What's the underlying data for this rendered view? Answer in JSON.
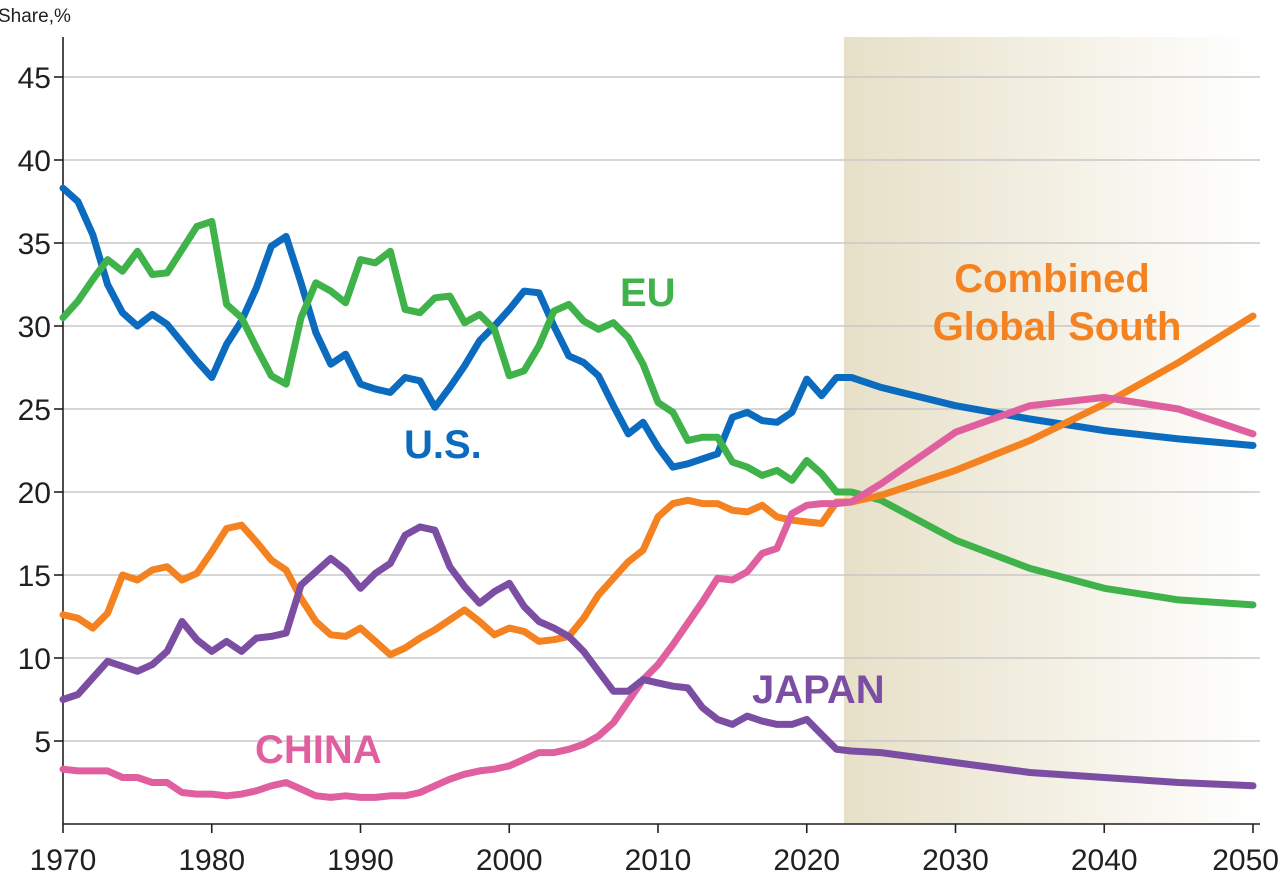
{
  "chart_data": {
    "type": "line",
    "title": "",
    "ylabel": "Share,%",
    "xlabel": "",
    "xlim": [
      1970,
      2050
    ],
    "ylim": [
      0,
      47
    ],
    "grid": true,
    "x_ticks": [
      "1970",
      "1980",
      "1990",
      "2000",
      "2010",
      "2020",
      "2030",
      "2040",
      "2050"
    ],
    "y_ticks": [
      "5",
      "10",
      "15",
      "20",
      "25",
      "30",
      "35",
      "40",
      "45"
    ],
    "projection_start": 2022.5,
    "series": [
      {
        "name": "U.S.",
        "label": "U.S.",
        "color": "#0a6bbf",
        "points": [
          [
            1970,
            38.3
          ],
          [
            1971,
            37.5
          ],
          [
            1972,
            35.5
          ],
          [
            1973,
            32.5
          ],
          [
            1974,
            30.8
          ],
          [
            1975,
            30.0
          ],
          [
            1976,
            30.7
          ],
          [
            1977,
            30.1
          ],
          [
            1978,
            29.0
          ],
          [
            1979,
            27.9
          ],
          [
            1980,
            26.9
          ],
          [
            1981,
            28.9
          ],
          [
            1982,
            30.3
          ],
          [
            1983,
            32.3
          ],
          [
            1984,
            34.8
          ],
          [
            1985,
            35.4
          ],
          [
            1986,
            32.6
          ],
          [
            1987,
            29.6
          ],
          [
            1988,
            27.7
          ],
          [
            1989,
            28.3
          ],
          [
            1990,
            26.5
          ],
          [
            1991,
            26.2
          ],
          [
            1992,
            26.0
          ],
          [
            1993,
            26.9
          ],
          [
            1994,
            26.7
          ],
          [
            1995,
            25.1
          ],
          [
            1996,
            26.3
          ],
          [
            1997,
            27.6
          ],
          [
            1998,
            29.1
          ],
          [
            1999,
            30.0
          ],
          [
            2000,
            31.0
          ],
          [
            2001,
            32.1
          ],
          [
            2002,
            32.0
          ],
          [
            2003,
            30.0
          ],
          [
            2004,
            28.2
          ],
          [
            2005,
            27.8
          ],
          [
            2006,
            27.0
          ],
          [
            2007,
            25.2
          ],
          [
            2008,
            23.5
          ],
          [
            2009,
            24.2
          ],
          [
            2010,
            22.7
          ],
          [
            2011,
            21.5
          ],
          [
            2012,
            21.7
          ],
          [
            2013,
            22.0
          ],
          [
            2014,
            22.3
          ],
          [
            2015,
            24.5
          ],
          [
            2016,
            24.8
          ],
          [
            2017,
            24.3
          ],
          [
            2018,
            24.2
          ],
          [
            2019,
            24.8
          ],
          [
            2020,
            26.8
          ],
          [
            2021,
            25.8
          ],
          [
            2022,
            26.9
          ],
          [
            2023,
            26.9
          ],
          [
            2025,
            26.3
          ],
          [
            2030,
            25.2
          ],
          [
            2035,
            24.4
          ],
          [
            2040,
            23.7
          ],
          [
            2045,
            23.2
          ],
          [
            2050,
            22.8
          ]
        ]
      },
      {
        "name": "EU",
        "label": "EU",
        "color": "#3fb24a",
        "points": [
          [
            1970,
            30.5
          ],
          [
            1971,
            31.5
          ],
          [
            1972,
            32.8
          ],
          [
            1973,
            34.0
          ],
          [
            1974,
            33.3
          ],
          [
            1975,
            34.5
          ],
          [
            1976,
            33.1
          ],
          [
            1977,
            33.2
          ],
          [
            1978,
            34.6
          ],
          [
            1979,
            36.0
          ],
          [
            1980,
            36.3
          ],
          [
            1981,
            31.3
          ],
          [
            1982,
            30.5
          ],
          [
            1983,
            28.7
          ],
          [
            1984,
            27.0
          ],
          [
            1985,
            26.5
          ],
          [
            1986,
            30.5
          ],
          [
            1987,
            32.6
          ],
          [
            1988,
            32.1
          ],
          [
            1989,
            31.4
          ],
          [
            1990,
            34.0
          ],
          [
            1991,
            33.8
          ],
          [
            1992,
            34.5
          ],
          [
            1993,
            31.0
          ],
          [
            1994,
            30.8
          ],
          [
            1995,
            31.7
          ],
          [
            1996,
            31.8
          ],
          [
            1997,
            30.2
          ],
          [
            1998,
            30.7
          ],
          [
            1999,
            29.8
          ],
          [
            2000,
            27.0
          ],
          [
            2001,
            27.3
          ],
          [
            2002,
            28.8
          ],
          [
            2003,
            30.9
          ],
          [
            2004,
            31.3
          ],
          [
            2005,
            30.3
          ],
          [
            2006,
            29.8
          ],
          [
            2007,
            30.2
          ],
          [
            2008,
            29.3
          ],
          [
            2009,
            27.7
          ],
          [
            2010,
            25.4
          ],
          [
            2011,
            24.8
          ],
          [
            2012,
            23.1
          ],
          [
            2013,
            23.3
          ],
          [
            2014,
            23.3
          ],
          [
            2015,
            21.8
          ],
          [
            2016,
            21.5
          ],
          [
            2017,
            21.0
          ],
          [
            2018,
            21.3
          ],
          [
            2019,
            20.7
          ],
          [
            2020,
            21.9
          ],
          [
            2021,
            21.1
          ],
          [
            2022,
            20.0
          ],
          [
            2023,
            20.0
          ],
          [
            2025,
            19.5
          ],
          [
            2030,
            17.1
          ],
          [
            2035,
            15.4
          ],
          [
            2040,
            14.2
          ],
          [
            2045,
            13.5
          ],
          [
            2050,
            13.2
          ]
        ]
      },
      {
        "name": "Combined Global South",
        "label": "Combined Global South",
        "color": "#f58220",
        "points": [
          [
            1970,
            12.6
          ],
          [
            1971,
            12.4
          ],
          [
            1972,
            11.8
          ],
          [
            1973,
            12.7
          ],
          [
            1974,
            15.0
          ],
          [
            1975,
            14.7
          ],
          [
            1976,
            15.3
          ],
          [
            1977,
            15.5
          ],
          [
            1978,
            14.7
          ],
          [
            1979,
            15.1
          ],
          [
            1980,
            16.4
          ],
          [
            1981,
            17.8
          ],
          [
            1982,
            18.0
          ],
          [
            1983,
            17.0
          ],
          [
            1984,
            15.9
          ],
          [
            1985,
            15.3
          ],
          [
            1986,
            13.6
          ],
          [
            1987,
            12.2
          ],
          [
            1988,
            11.4
          ],
          [
            1989,
            11.3
          ],
          [
            1990,
            11.8
          ],
          [
            1991,
            11.0
          ],
          [
            1992,
            10.2
          ],
          [
            1993,
            10.6
          ],
          [
            1994,
            11.2
          ],
          [
            1995,
            11.7
          ],
          [
            1996,
            12.3
          ],
          [
            1997,
            12.9
          ],
          [
            1998,
            12.2
          ],
          [
            1999,
            11.4
          ],
          [
            2000,
            11.8
          ],
          [
            2001,
            11.6
          ],
          [
            2002,
            11.0
          ],
          [
            2003,
            11.1
          ],
          [
            2004,
            11.3
          ],
          [
            2005,
            12.4
          ],
          [
            2006,
            13.8
          ],
          [
            2007,
            14.8
          ],
          [
            2008,
            15.8
          ],
          [
            2009,
            16.5
          ],
          [
            2010,
            18.5
          ],
          [
            2011,
            19.3
          ],
          [
            2012,
            19.5
          ],
          [
            2013,
            19.3
          ],
          [
            2014,
            19.3
          ],
          [
            2015,
            18.9
          ],
          [
            2016,
            18.8
          ],
          [
            2017,
            19.2
          ],
          [
            2018,
            18.5
          ],
          [
            2019,
            18.3
          ],
          [
            2020,
            18.2
          ],
          [
            2021,
            18.1
          ],
          [
            2022,
            19.4
          ],
          [
            2023,
            19.4
          ],
          [
            2025,
            19.8
          ],
          [
            2030,
            21.3
          ],
          [
            2035,
            23.1
          ],
          [
            2040,
            25.3
          ],
          [
            2045,
            27.8
          ],
          [
            2050,
            30.6
          ]
        ]
      },
      {
        "name": "China",
        "label": "CHINA",
        "color": "#e0609f",
        "points": [
          [
            1970,
            3.3
          ],
          [
            1971,
            3.2
          ],
          [
            1972,
            3.2
          ],
          [
            1973,
            3.2
          ],
          [
            1974,
            2.8
          ],
          [
            1975,
            2.8
          ],
          [
            1976,
            2.5
          ],
          [
            1977,
            2.5
          ],
          [
            1978,
            1.9
          ],
          [
            1979,
            1.8
          ],
          [
            1980,
            1.8
          ],
          [
            1981,
            1.7
          ],
          [
            1982,
            1.8
          ],
          [
            1983,
            2.0
          ],
          [
            1984,
            2.3
          ],
          [
            1985,
            2.5
          ],
          [
            1986,
            2.1
          ],
          [
            1987,
            1.7
          ],
          [
            1988,
            1.6
          ],
          [
            1989,
            1.7
          ],
          [
            1990,
            1.6
          ],
          [
            1991,
            1.6
          ],
          [
            1992,
            1.7
          ],
          [
            1993,
            1.7
          ],
          [
            1994,
            1.9
          ],
          [
            1995,
            2.3
          ],
          [
            1996,
            2.7
          ],
          [
            1997,
            3.0
          ],
          [
            1998,
            3.2
          ],
          [
            1999,
            3.3
          ],
          [
            2000,
            3.5
          ],
          [
            2001,
            3.9
          ],
          [
            2002,
            4.3
          ],
          [
            2003,
            4.3
          ],
          [
            2004,
            4.5
          ],
          [
            2005,
            4.8
          ],
          [
            2006,
            5.3
          ],
          [
            2007,
            6.1
          ],
          [
            2008,
            7.4
          ],
          [
            2009,
            8.7
          ],
          [
            2010,
            9.6
          ],
          [
            2011,
            10.8
          ],
          [
            2012,
            12.1
          ],
          [
            2013,
            13.4
          ],
          [
            2014,
            14.8
          ],
          [
            2015,
            14.7
          ],
          [
            2016,
            15.2
          ],
          [
            2017,
            16.3
          ],
          [
            2018,
            16.6
          ],
          [
            2019,
            18.7
          ],
          [
            2020,
            19.2
          ],
          [
            2021,
            19.3
          ],
          [
            2022,
            19.3
          ],
          [
            2023,
            19.4
          ],
          [
            2025,
            20.5
          ],
          [
            2030,
            23.6
          ],
          [
            2035,
            25.2
          ],
          [
            2040,
            25.7
          ],
          [
            2045,
            25.0
          ],
          [
            2050,
            23.5
          ]
        ]
      },
      {
        "name": "Japan",
        "label": "JAPAN",
        "color": "#7b4ea3",
        "points": [
          [
            1970,
            7.5
          ],
          [
            1971,
            7.8
          ],
          [
            1972,
            8.8
          ],
          [
            1973,
            9.8
          ],
          [
            1974,
            9.5
          ],
          [
            1975,
            9.2
          ],
          [
            1976,
            9.6
          ],
          [
            1977,
            10.4
          ],
          [
            1978,
            12.2
          ],
          [
            1979,
            11.1
          ],
          [
            1980,
            10.4
          ],
          [
            1981,
            11.0
          ],
          [
            1982,
            10.4
          ],
          [
            1983,
            11.2
          ],
          [
            1984,
            11.3
          ],
          [
            1985,
            11.5
          ],
          [
            1986,
            14.4
          ],
          [
            1987,
            15.2
          ],
          [
            1988,
            16.0
          ],
          [
            1989,
            15.3
          ],
          [
            1990,
            14.2
          ],
          [
            1991,
            15.1
          ],
          [
            1992,
            15.7
          ],
          [
            1993,
            17.4
          ],
          [
            1994,
            17.9
          ],
          [
            1995,
            17.7
          ],
          [
            1996,
            15.5
          ],
          [
            1997,
            14.3
          ],
          [
            1998,
            13.3
          ],
          [
            1999,
            14.0
          ],
          [
            2000,
            14.5
          ],
          [
            2001,
            13.1
          ],
          [
            2002,
            12.2
          ],
          [
            2003,
            11.8
          ],
          [
            2004,
            11.3
          ],
          [
            2005,
            10.4
          ],
          [
            2006,
            9.2
          ],
          [
            2007,
            8.0
          ],
          [
            2008,
            8.0
          ],
          [
            2009,
            8.7
          ],
          [
            2010,
            8.5
          ],
          [
            2011,
            8.3
          ],
          [
            2012,
            8.2
          ],
          [
            2013,
            7.0
          ],
          [
            2014,
            6.3
          ],
          [
            2015,
            6.0
          ],
          [
            2016,
            6.5
          ],
          [
            2017,
            6.2
          ],
          [
            2018,
            6.0
          ],
          [
            2019,
            6.0
          ],
          [
            2020,
            6.3
          ],
          [
            2021,
            5.4
          ],
          [
            2022,
            4.5
          ],
          [
            2023,
            4.4
          ],
          [
            2025,
            4.3
          ],
          [
            2030,
            3.7
          ],
          [
            2035,
            3.1
          ],
          [
            2040,
            2.8
          ],
          [
            2045,
            2.5
          ],
          [
            2050,
            2.3
          ]
        ]
      }
    ],
    "annotations": {
      "us": "U.S.",
      "eu": "EU",
      "gs_line1": "Combined",
      "gs_line2": "Global South",
      "china": "CHINA",
      "japan": "JAPAN"
    }
  }
}
